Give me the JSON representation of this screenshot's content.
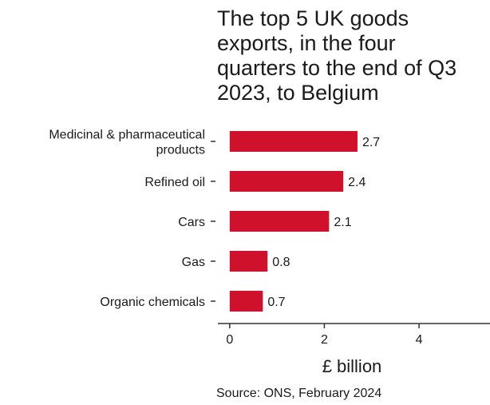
{
  "chart_data": {
    "type": "bar",
    "orientation": "horizontal",
    "title_lines": [
      "The top 5 UK goods",
      "exports, in the four",
      "quarters to the end of Q3",
      "2023, to Belgium"
    ],
    "categories": [
      [
        "Medicinal & pharmaceutical",
        "products"
      ],
      [
        "Refined oil"
      ],
      [
        "Cars"
      ],
      [
        "Gas"
      ],
      [
        "Organic chemicals"
      ]
    ],
    "values": [
      2.7,
      2.4,
      2.1,
      0.8,
      0.7
    ],
    "value_labels": [
      "2.7",
      "2.4",
      "2.1",
      "0.8",
      "0.7"
    ],
    "xlabel": "£ billion",
    "xticks": [
      0,
      2,
      4
    ],
    "xtick_labels": [
      "0",
      "2",
      "4"
    ],
    "xlim": [
      -0.25,
      5.5
    ],
    "bar_color": "#d0112b",
    "grid": false,
    "source": "Source: ONS, February 2024"
  }
}
